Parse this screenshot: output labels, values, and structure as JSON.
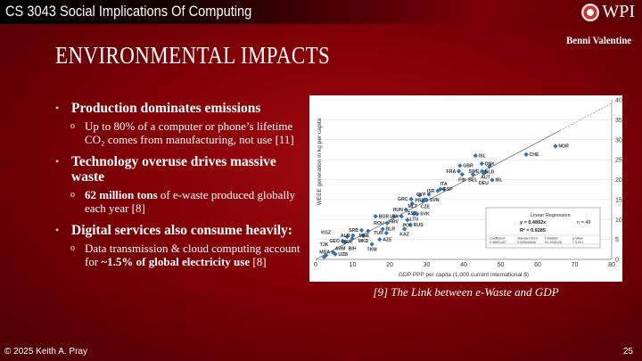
{
  "header": {
    "course": "CS 3043 Social Implications Of Computing",
    "logo_text": "WPI",
    "author": "Benni Valentine"
  },
  "slide": {
    "title": "ENVIRONMENTAL IMPACTS"
  },
  "bullets": [
    {
      "text": "Production dominates emissions",
      "sub": [
        {
          "parts": [
            {
              "t": "Up to 80% of a computer or phone’s lifetime CO₂ comes from manufacturing, not use [11]",
              "b": false
            }
          ]
        }
      ]
    },
    {
      "text": "Technology overuse drives massive waste",
      "sub": [
        {
          "parts": [
            {
              "t": "62 million tons",
              "b": true
            },
            {
              "t": " of e-waste produced globally each year [8]",
              "b": false
            }
          ]
        }
      ]
    },
    {
      "text": "Digital services also consume heavily:",
      "sub": [
        {
          "parts": [
            {
              "t": "Data transmission & cloud computing account for ",
              "b": false
            },
            {
              "t": "~1.5% of global electricity use",
              "b": true
            },
            {
              "t": " [8]",
              "b": false
            }
          ]
        }
      ]
    }
  ],
  "caption": "[9] The Link between e-Waste and GDP",
  "footer": {
    "copyright": "© 2025 Keith A. Pray",
    "page": "25"
  },
  "colors": {
    "marker": "#2e75b6",
    "background": "#8a0008"
  },
  "chart_data": {
    "type": "scatter",
    "xlabel": "GDP PPP per capita (1,000 current international $)",
    "ylabel": "WEEE generation in kg per capita",
    "xlim": [
      0,
      80
    ],
    "ylim": [
      0,
      40
    ],
    "xticks": [
      0,
      10,
      20,
      30,
      40,
      50,
      60,
      70,
      80
    ],
    "yticks": [
      0,
      5,
      10,
      15,
      20,
      25,
      30,
      35,
      40
    ],
    "y_axis_side": "right",
    "grid": "horizontal",
    "regression": {
      "title": "Linear Regression",
      "equation": "y = 0.4892x",
      "slope": 0.4892,
      "r2": "R² = 0.9285",
      "n": "n = 49",
      "headers": [
        "Coefficient",
        "Standard Error",
        "t-Statistic",
        "p-Value"
      ],
      "values": [
        "0.48921407",
        "0.009540846",
        "51.2435126",
        "< 0.001"
      ]
    },
    "points": [
      {
        "label": "NOR",
        "x": 64.8,
        "y": 28.4
      },
      {
        "label": "CHE",
        "x": 56.9,
        "y": 26.3
      },
      {
        "label": "ISL",
        "x": 43.2,
        "y": 26.0
      },
      {
        "label": "DNK",
        "x": 44.9,
        "y": 24.0
      },
      {
        "label": "NLD",
        "x": 47.0,
        "y": 23.3
      },
      {
        "label": "GBR",
        "x": 39.0,
        "y": 23.5
      },
      {
        "label": "SWE",
        "x": 45.0,
        "y": 22.1
      },
      {
        "label": "AUT",
        "x": 45.9,
        "y": 21.9
      },
      {
        "label": "DEU",
        "x": 45.4,
        "y": 21.6
      },
      {
        "label": "FRA",
        "x": 38.7,
        "y": 22.1
      },
      {
        "label": "FIN",
        "x": 39.6,
        "y": 21.3
      },
      {
        "label": "BEL",
        "x": 42.5,
        "y": 21.3
      },
      {
        "label": "IRL",
        "x": 47.7,
        "y": 19.9
      },
      {
        "label": "ESP",
        "x": 33.7,
        "y": 17.6
      },
      {
        "label": "ISR",
        "x": 33.0,
        "y": 17.2
      },
      {
        "label": "ITA",
        "x": 34.6,
        "y": 17.6
      },
      {
        "label": "CYP",
        "x": 30.6,
        "y": 16.3
      },
      {
        "label": "PRT",
        "x": 28.1,
        "y": 16.1
      },
      {
        "label": "GRC",
        "x": 25.8,
        "y": 15.1
      },
      {
        "label": "SVN",
        "x": 30.0,
        "y": 14.9
      },
      {
        "label": "CZE",
        "x": 29.6,
        "y": 15.0
      },
      {
        "label": "MLT",
        "x": 29.0,
        "y": 14.6
      },
      {
        "label": "EST",
        "x": 26.1,
        "y": 14.0
      },
      {
        "label": "HUN",
        "x": 24.4,
        "y": 12.5
      },
      {
        "label": "LTU",
        "x": 26.6,
        "y": 11.4
      },
      {
        "label": "SVK",
        "x": 27.4,
        "y": 11.4
      },
      {
        "label": "LVA",
        "x": 23.2,
        "y": 10.8
      },
      {
        "label": "HRV",
        "x": 21.1,
        "y": 10.8
      },
      {
        "label": "BGR",
        "x": 16.2,
        "y": 10.8
      },
      {
        "label": "POL",
        "x": 24.8,
        "y": 9.9
      },
      {
        "label": "ROU",
        "x": 19.3,
        "y": 9.1
      },
      {
        "label": "RUS",
        "x": 25.6,
        "y": 8.7
      },
      {
        "label": "BLR",
        "x": 18.1,
        "y": 7.6
      },
      {
        "label": "KAZ",
        "x": 24.0,
        "y": 7.6
      },
      {
        "label": "TUR",
        "x": 19.1,
        "y": 6.6
      },
      {
        "label": "SRB",
        "x": 12.4,
        "y": 7.3
      },
      {
        "label": "MNE",
        "x": 14.2,
        "y": 7.1
      },
      {
        "label": "MKD",
        "x": 12.9,
        "y": 5.9
      },
      {
        "label": "ALB",
        "x": 10.1,
        "y": 6.0
      },
      {
        "label": "UKR",
        "x": 8.5,
        "y": 5.7
      },
      {
        "label": "BIH",
        "x": 9.9,
        "y": 5.2
      },
      {
        "label": "GEO",
        "x": 7.3,
        "y": 4.6
      },
      {
        "label": "ARM",
        "x": 8.0,
        "y": 4.3
      },
      {
        "label": "AZE",
        "x": 17.3,
        "y": 5.0
      },
      {
        "label": "TKM",
        "x": 15.2,
        "y": 3.8
      },
      {
        "label": "MDA",
        "x": 4.7,
        "y": 1.8
      },
      {
        "label": "UZB",
        "x": 5.3,
        "y": 1.3
      },
      {
        "label": "KGZ",
        "x": 2.8,
        "y": 1.0
      },
      {
        "label": "TJK",
        "x": 2.3,
        "y": 0.6
      }
    ]
  }
}
